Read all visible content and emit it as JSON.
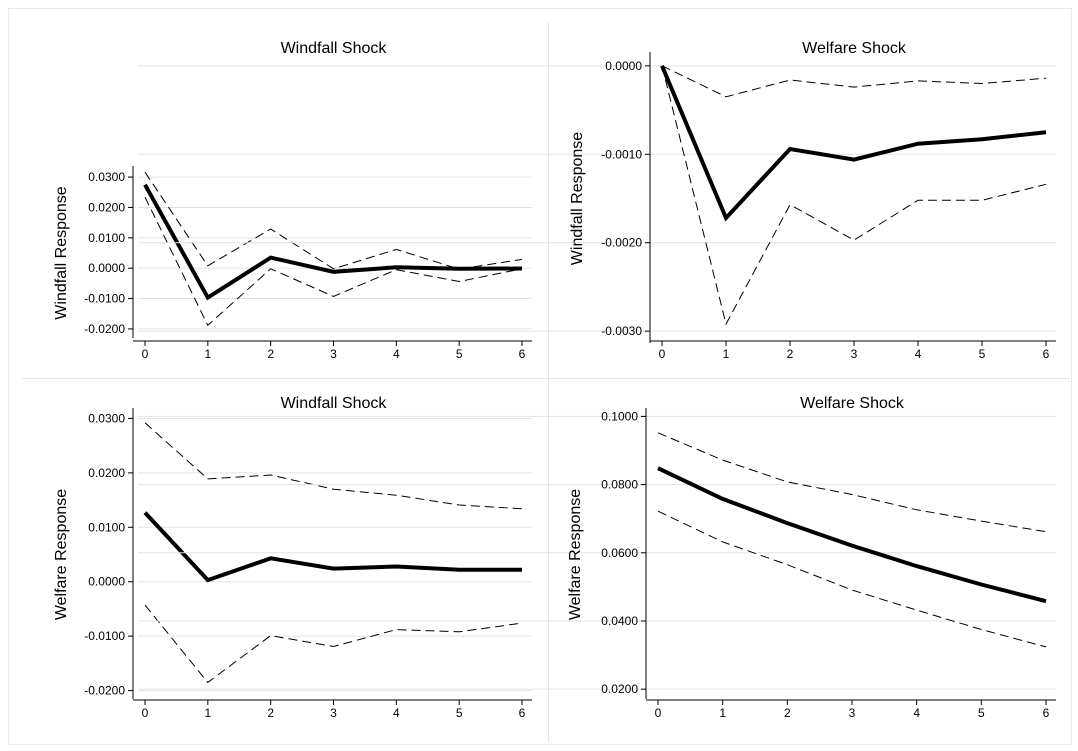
{
  "chart_data": [
    {
      "type": "line",
      "title": "Windfall Shock",
      "ylabel": "Windfall Response",
      "xlabel": "",
      "x": [
        0,
        1,
        2,
        3,
        4,
        5,
        6
      ],
      "ylim": [
        -0.022,
        0.032
      ],
      "yticks": [
        -0.02,
        -0.01,
        0.0,
        0.01,
        0.02,
        0.03
      ],
      "ytick_labels": [
        "-0.0200",
        "-0.0100",
        "0.0000",
        "0.0100",
        "0.0200",
        "0.0300"
      ],
      "grid": true,
      "series": [
        {
          "role": "estimate",
          "values": [
            0.0275,
            -0.0097,
            0.0035,
            -0.0012,
            0.0003,
            -0.0002,
            -0.0001
          ]
        },
        {
          "role": "upper-bound",
          "values": [
            0.0316,
            0.0008,
            0.0129,
            -0.0002,
            0.0062,
            -0.0003,
            0.0029
          ]
        },
        {
          "role": "lower-bound",
          "values": [
            0.0234,
            -0.0188,
            -0.0002,
            -0.0093,
            -0.0005,
            -0.0044,
            -0.0002
          ]
        }
      ]
    },
    {
      "type": "line",
      "title": "Welfare Shock",
      "ylabel": "Windfall Response",
      "xlabel": "",
      "x": [
        0,
        1,
        2,
        3,
        4,
        5,
        6
      ],
      "ylim": [
        -0.0031,
        0.0001
      ],
      "yticks": [
        -0.003,
        -0.002,
        -0.001,
        0.0
      ],
      "ytick_labels": [
        "-0.0030",
        "-0.0020",
        "-0.0010",
        "0.0000"
      ],
      "grid": true,
      "series": [
        {
          "role": "estimate",
          "values": [
            0.0,
            -0.00172,
            -0.00094,
            -0.00106,
            -0.00088,
            -0.00083,
            -0.00075
          ]
        },
        {
          "role": "upper-bound",
          "values": [
            0.0,
            -0.00035,
            -0.00016,
            -0.00024,
            -0.00017,
            -0.0002,
            -0.00014
          ]
        },
        {
          "role": "lower-bound",
          "values": [
            0.0,
            -0.00292,
            -0.00157,
            -0.00197,
            -0.00152,
            -0.00152,
            -0.00134
          ]
        }
      ]
    },
    {
      "type": "line",
      "title": "Windfall Shock",
      "ylabel": "Welfare Response",
      "xlabel": "",
      "x": [
        0,
        1,
        2,
        3,
        4,
        5,
        6
      ],
      "ylim": [
        -0.021,
        0.031
      ],
      "yticks": [
        -0.02,
        -0.01,
        0.0,
        0.01,
        0.02,
        0.03
      ],
      "ytick_labels": [
        "-0.0200",
        "-0.0100",
        "0.0000",
        "0.0100",
        "0.0200",
        "0.0300"
      ],
      "grid": true,
      "series": [
        {
          "role": "estimate",
          "values": [
            0.0127,
            0.0003,
            0.0043,
            0.0024,
            0.0028,
            0.0022,
            0.0022
          ]
        },
        {
          "role": "upper-bound",
          "values": [
            0.0292,
            0.0189,
            0.0196,
            0.017,
            0.0159,
            0.0141,
            0.0134
          ]
        },
        {
          "role": "lower-bound",
          "values": [
            -0.0043,
            -0.0185,
            -0.0099,
            -0.0119,
            -0.0088,
            -0.0092,
            -0.0076
          ]
        }
      ]
    },
    {
      "type": "line",
      "title": "Welfare Shock",
      "ylabel": "Welfare Response",
      "xlabel": "",
      "x": [
        0,
        1,
        2,
        3,
        4,
        5,
        6
      ],
      "ylim": [
        0.018,
        0.101
      ],
      "yticks": [
        0.02,
        0.04,
        0.06,
        0.08,
        0.1
      ],
      "ytick_labels": [
        "0.0200",
        "0.0400",
        "0.0600",
        "0.0800",
        "0.1000"
      ],
      "grid": true,
      "series": [
        {
          "role": "estimate",
          "values": [
            0.0848,
            0.0758,
            0.0687,
            0.0621,
            0.0561,
            0.0507,
            0.0458
          ]
        },
        {
          "role": "upper-bound",
          "values": [
            0.0952,
            0.0872,
            0.0808,
            0.0771,
            0.0726,
            0.0693,
            0.0662
          ]
        },
        {
          "role": "lower-bound",
          "values": [
            0.0722,
            0.0632,
            0.0565,
            0.0491,
            0.0432,
            0.0375,
            0.0324
          ]
        }
      ]
    }
  ]
}
